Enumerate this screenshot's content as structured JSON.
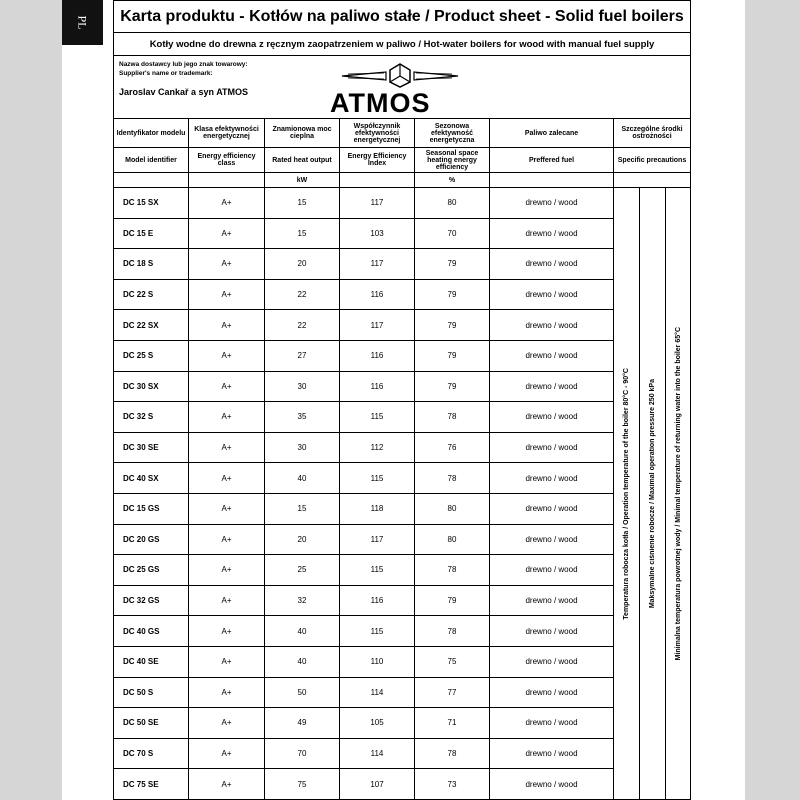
{
  "tab": "PL",
  "header": {
    "title": "Karta produktu - Kotłów na paliwo stałe / Product sheet - Solid fuel boilers",
    "subtitle": "Kotły wodne do drewna z ręcznym zaopatrzeniem w paliwo / Hot-water boilers for wood with manual fuel supply"
  },
  "supplier": {
    "label_pl": "Nazwa dostawcy lub jego znak towarowy:",
    "label_en": "Supplier's name or trademark:",
    "name": "Jaroslav Cankař a syn ATMOS",
    "logo": "ATMOS"
  },
  "table": {
    "header_pl": [
      "Identyfikator modelu",
      "Klasa efektywności energetycznej",
      "Znamionowa moc cieplna",
      "Współczynnik efektywności energetycznej",
      "Sezonowa efektywność energetyczna",
      "Paliwo zalecane",
      "Szczególne środki ostrożności"
    ],
    "header_en": [
      "Model identifier",
      "Energy efficiency class",
      "Rated heat output",
      "Energy Efficiency Index",
      "Seasonal space heating energy efficiency",
      "Preffered fuel",
      "Specific precautions"
    ],
    "units": {
      "output": "kW",
      "seasonal": "%"
    },
    "rows": [
      [
        "DC 15 SX",
        "A+",
        "15",
        "117",
        "80",
        "drewno / wood"
      ],
      [
        "DC 15 E",
        "A+",
        "15",
        "103",
        "70",
        "drewno / wood"
      ],
      [
        "DC 18 S",
        "A+",
        "20",
        "117",
        "79",
        "drewno / wood"
      ],
      [
        "DC 22 S",
        "A+",
        "22",
        "116",
        "79",
        "drewno / wood"
      ],
      [
        "DC 22 SX",
        "A+",
        "22",
        "117",
        "79",
        "drewno / wood"
      ],
      [
        "DC 25 S",
        "A+",
        "27",
        "116",
        "79",
        "drewno / wood"
      ],
      [
        "DC 30 SX",
        "A+",
        "30",
        "116",
        "79",
        "drewno / wood"
      ],
      [
        "DC 32 S",
        "A+",
        "35",
        "115",
        "78",
        "drewno / wood"
      ],
      [
        "DC 30 SE",
        "A+",
        "30",
        "112",
        "76",
        "drewno / wood"
      ],
      [
        "DC 40 SX",
        "A+",
        "40",
        "115",
        "78",
        "drewno / wood"
      ],
      [
        "DC 15 GS",
        "A+",
        "15",
        "118",
        "80",
        "drewno / wood"
      ],
      [
        "DC 20 GS",
        "A+",
        "20",
        "117",
        "80",
        "drewno / wood"
      ],
      [
        "DC 25 GS",
        "A+",
        "25",
        "115",
        "78",
        "drewno / wood"
      ],
      [
        "DC 32 GS",
        "A+",
        "32",
        "116",
        "79",
        "drewno / wood"
      ],
      [
        "DC 40 GS",
        "A+",
        "40",
        "115",
        "78",
        "drewno / wood"
      ],
      [
        "DC 40 SE",
        "A+",
        "40",
        "110",
        "75",
        "drewno / wood"
      ],
      [
        "DC 50 S",
        "A+",
        "50",
        "114",
        "77",
        "drewno / wood"
      ],
      [
        "DC 50 SE",
        "A+",
        "49",
        "105",
        "71",
        "drewno / wood"
      ],
      [
        "DC 70 S",
        "A+",
        "70",
        "114",
        "78",
        "drewno / wood"
      ],
      [
        "DC 75 SE",
        "A+",
        "75",
        "107",
        "73",
        "drewno / wood"
      ]
    ],
    "precautions": [
      "Temperatura robocza kotła / Operation temperature of the boiler 80°C - 90°C",
      "Maksymalne ciśnienie robocze / Maximal operation pressure 250 kPa",
      "Minimalna temperatura powrotnej wody / Minimal temperature of returning water into the boiler 65°C"
    ]
  }
}
